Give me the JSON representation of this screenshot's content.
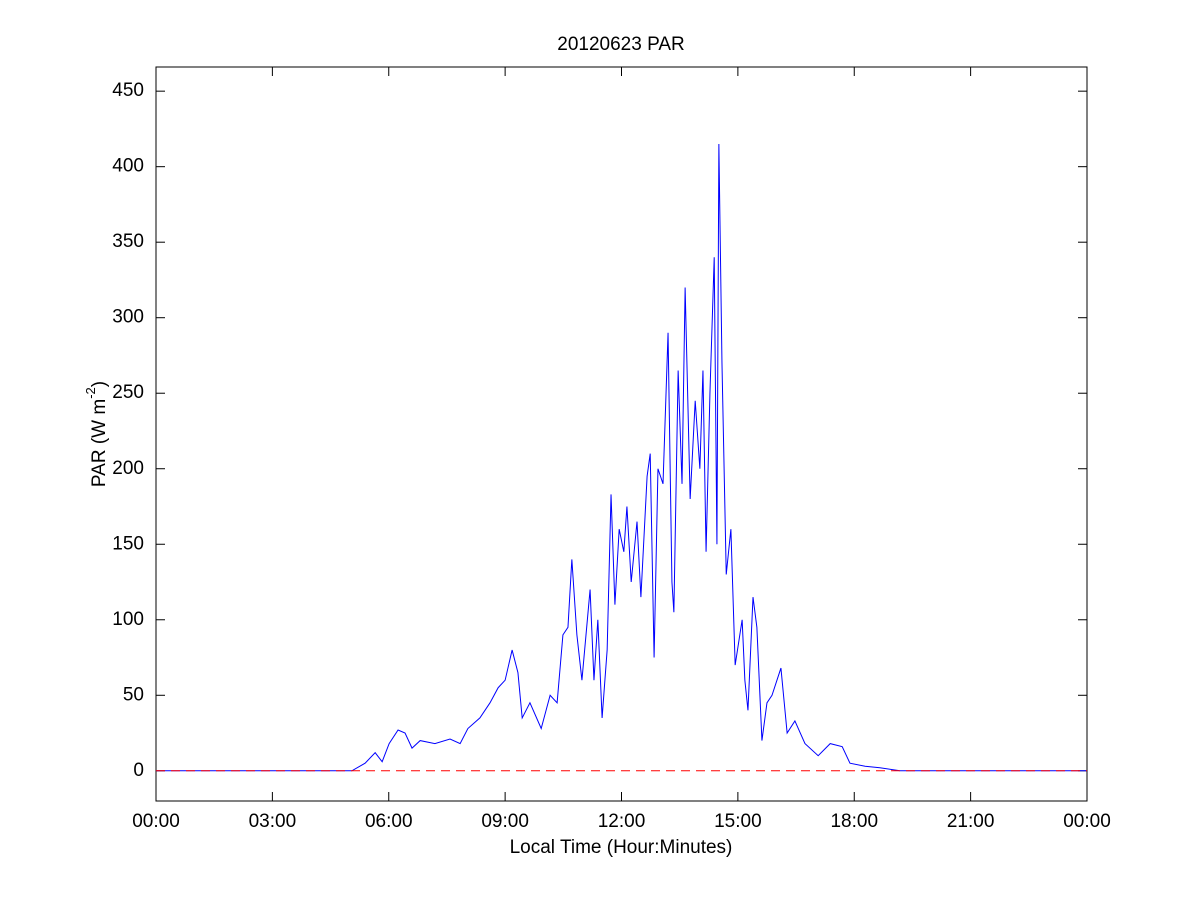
{
  "chart_data": {
    "type": "line",
    "title": "20120623 PAR",
    "xlabel": "Local Time (Hour:Minutes)",
    "ylabel": {
      "text": "PAR (W m",
      "superscript": "-2",
      "suffix": ")"
    },
    "xlim": [
      0,
      24
    ],
    "xticks": [
      {
        "value": 0,
        "label": "00:00"
      },
      {
        "value": 3,
        "label": "03:00"
      },
      {
        "value": 6,
        "label": "06:00"
      },
      {
        "value": 9,
        "label": "09:00"
      },
      {
        "value": 12,
        "label": "12:00"
      },
      {
        "value": 15,
        "label": "15:00"
      },
      {
        "value": 18,
        "label": "18:00"
      },
      {
        "value": 21,
        "label": "21:00"
      },
      {
        "value": 24,
        "label": "00:00"
      }
    ],
    "ylim": [
      -20,
      466
    ],
    "yticks": [
      0,
      50,
      100,
      150,
      200,
      250,
      300,
      350,
      400,
      450
    ],
    "grid": false,
    "series": [
      {
        "color": "#0000ff",
        "x": [
          0,
          5.05,
          5.39,
          5.65,
          5.83,
          6.01,
          6.24,
          6.42,
          6.6,
          6.81,
          7.19,
          7.58,
          7.84,
          8.04,
          8.35,
          8.61,
          8.82,
          9.0,
          9.18,
          9.33,
          9.44,
          9.64,
          9.93,
          10.16,
          10.34,
          10.49,
          10.62,
          10.72,
          10.85,
          10.98,
          11.19,
          11.29,
          11.39,
          11.5,
          11.63,
          11.73,
          11.83,
          11.94,
          12.06,
          12.14,
          12.25,
          12.4,
          12.5,
          12.66,
          12.74,
          12.84,
          12.94,
          13.07,
          13.2,
          13.3,
          13.35,
          13.46,
          13.56,
          13.64,
          13.77,
          13.9,
          14.02,
          14.1,
          14.18,
          14.28,
          14.39,
          14.46,
          14.51,
          14.59,
          14.7,
          14.82,
          14.93,
          15.11,
          15.18,
          15.26,
          15.39,
          15.49,
          15.62,
          15.75,
          15.88,
          16.11,
          16.27,
          16.47,
          16.73,
          17.07,
          17.38,
          17.69,
          17.89,
          18.28,
          18.66,
          19.18,
          24
        ],
        "values": [
          0,
          0,
          5,
          12,
          6,
          18,
          27,
          25,
          15,
          20,
          18,
          21,
          18,
          28,
          35,
          45,
          55,
          60,
          80,
          65,
          35,
          45,
          28,
          50,
          45,
          90,
          95,
          140,
          90,
          60,
          120,
          60,
          100,
          35,
          80,
          183,
          110,
          160,
          145,
          175,
          125,
          165,
          115,
          195,
          210,
          75,
          200,
          190,
          290,
          125,
          105,
          265,
          190,
          320,
          180,
          245,
          200,
          265,
          145,
          250,
          340,
          150,
          415,
          270,
          130,
          160,
          70,
          100,
          60,
          40,
          115,
          95,
          20,
          45,
          50,
          68,
          25,
          33,
          18,
          10,
          18,
          16,
          5,
          3,
          2,
          0,
          0
        ]
      }
    ],
    "hlines": [
      {
        "y": 0,
        "color": "#ff0000",
        "style": "dashed"
      }
    ]
  }
}
